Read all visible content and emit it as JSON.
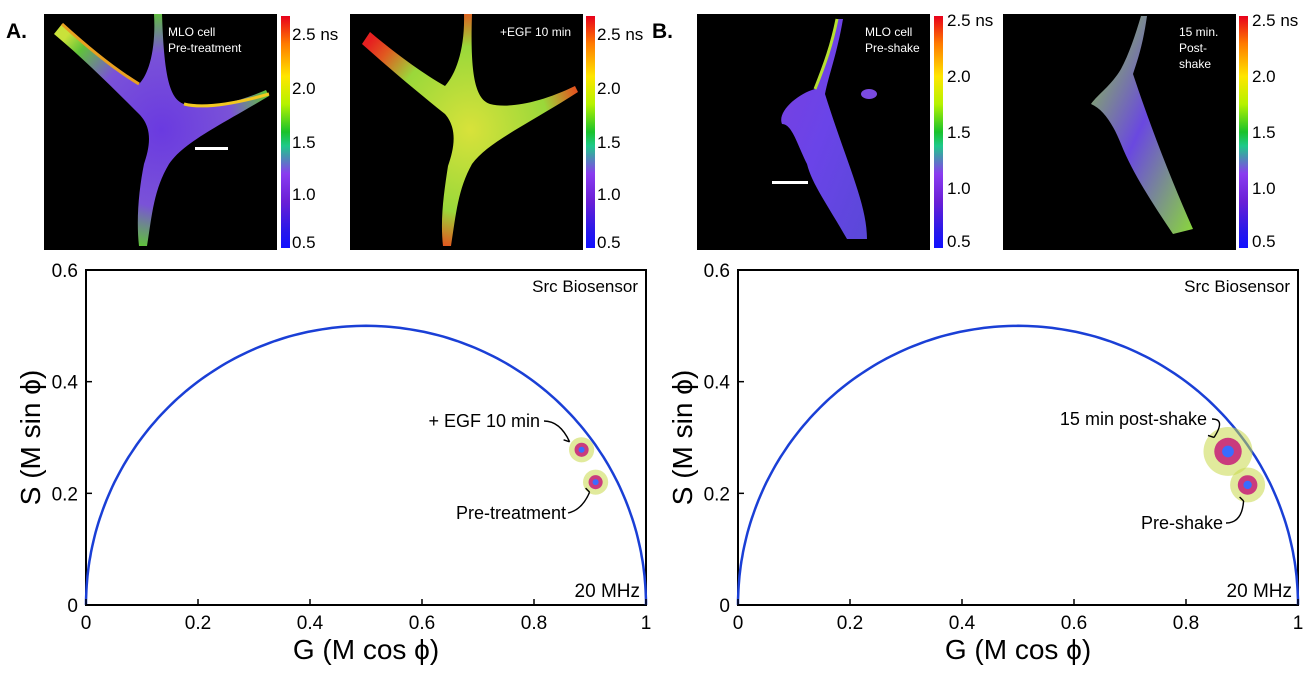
{
  "panels": [
    {
      "letter": "A.",
      "images": [
        {
          "label_lines": [
            "MLO cell",
            "Pre-treatment"
          ],
          "has_scalebar": true
        },
        {
          "label_lines": [
            "+EGF 10 min"
          ],
          "has_scalebar": false
        }
      ],
      "colorbar_ticks": [
        "2.5 ns",
        "2.0",
        "1.5",
        "1.0",
        "0.5"
      ],
      "colorbar_range_ns": [
        0.5,
        2.7
      ],
      "colors": {
        "curve": "#1a3fd6",
        "cluster_core": "#3a6cff",
        "cluster_mid": "#c8287a",
        "cluster_halo": "#c8d84a"
      }
    },
    {
      "letter": "B.",
      "images": [
        {
          "label_lines": [
            "MLO cell",
            "Pre-shake"
          ],
          "has_scalebar": true
        },
        {
          "label_lines": [
            "15 min.",
            "Post-shake"
          ],
          "has_scalebar": false
        }
      ],
      "colorbar_ticks": [
        "2.5 ns",
        "2.0",
        "1.5",
        "1.0",
        "0.5"
      ],
      "colorbar_range_ns": [
        0.5,
        2.7
      ],
      "colors": {
        "curve": "#1a3fd6",
        "cluster_core": "#3a6cff",
        "cluster_mid": "#c8287a",
        "cluster_halo": "#c8d84a"
      }
    }
  ],
  "chart_data": [
    {
      "type": "scatter",
      "title": "Src Biosensor",
      "frequency_label": "20 MHz",
      "xlabel": "G (M cos ϕ)",
      "ylabel": "S (M sin ϕ)",
      "xlim": [
        0,
        1
      ],
      "ylim": [
        0,
        0.6
      ],
      "xticks": [
        "0",
        "0.2",
        "0.4",
        "0.6",
        "0.8",
        "1"
      ],
      "yticks": [
        "0",
        "0.2",
        "0.4",
        "0.6"
      ],
      "grid": false,
      "universal_semicircle": {
        "center": [
          0.5,
          0
        ],
        "radius": 0.5
      },
      "series": [
        {
          "name": "+ EGF 10 min",
          "x": 0.885,
          "y": 0.278,
          "spread": 0.018
        },
        {
          "name": "Pre-treatment",
          "x": 0.91,
          "y": 0.22,
          "spread": 0.018
        }
      ]
    },
    {
      "type": "scatter",
      "title": "Src Biosensor",
      "frequency_label": "20 MHz",
      "xlabel": "G (M cos ϕ)",
      "ylabel": "S (M sin ϕ)",
      "xlim": [
        0,
        1
      ],
      "ylim": [
        0,
        0.6
      ],
      "xticks": [
        "0",
        "0.2",
        "0.4",
        "0.6",
        "0.8",
        "1"
      ],
      "yticks": [
        "0",
        "0.2",
        "0.4",
        "0.6"
      ],
      "grid": false,
      "universal_semicircle": {
        "center": [
          0.5,
          0
        ],
        "radius": 0.5
      },
      "series": [
        {
          "name": "15 min post-shake",
          "x": 0.875,
          "y": 0.275,
          "spread": 0.035
        },
        {
          "name": "Pre-shake",
          "x": 0.91,
          "y": 0.215,
          "spread": 0.025
        }
      ]
    }
  ]
}
